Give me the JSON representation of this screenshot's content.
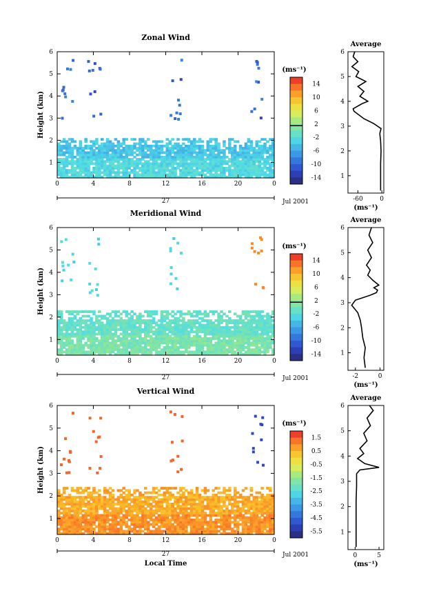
{
  "chart_data": [
    {
      "type": "heatmap",
      "title": "Zonal Wind",
      "xlabel": "",
      "ylabel": "Height (km)",
      "xlim": [
        0,
        24
      ],
      "ylim": [
        0.3,
        6
      ],
      "x_ticks": [
        "0",
        "4",
        "8",
        "12",
        "16",
        "20",
        "0"
      ],
      "y_ticks": [
        "1",
        "2",
        "3",
        "4",
        "5",
        "6"
      ],
      "day_label": "27",
      "date_label": "Jul 2001",
      "colorbar": {
        "unit": "(ms⁻¹)",
        "ticks": [
          "14",
          "10",
          "6",
          "2",
          "-2",
          "-6",
          "-10",
          "-14"
        ],
        "range": [
          -16,
          16
        ],
        "zero_line": 1.5
      },
      "fields": {
        "base": -4,
        "top_cut": 2.15,
        "rand": 1.5
      },
      "average_profile": {
        "title": "Average",
        "xlabel": "(ms⁻¹)",
        "x_ticks": [
          "-60",
          "0"
        ],
        "xlim": [
          -85,
          5
        ],
        "points": [
          [
            -3,
            0.4
          ],
          [
            -3,
            1.0
          ],
          [
            -3,
            1.5
          ],
          [
            -2,
            2.0
          ],
          [
            -3,
            2.4
          ],
          [
            -5,
            2.7
          ],
          [
            -2,
            2.9
          ],
          [
            -20,
            3.1
          ],
          [
            -45,
            3.3
          ],
          [
            -70,
            3.6
          ],
          [
            -72,
            3.7
          ],
          [
            -50,
            3.9
          ],
          [
            -35,
            4.0
          ],
          [
            -55,
            4.2
          ],
          [
            -45,
            4.4
          ],
          [
            -60,
            4.6
          ],
          [
            -40,
            4.8
          ],
          [
            -65,
            5.0
          ],
          [
            -58,
            5.2
          ],
          [
            -75,
            5.4
          ],
          [
            -60,
            5.6
          ],
          [
            -72,
            5.8
          ],
          [
            -68,
            6.0
          ]
        ]
      }
    },
    {
      "type": "heatmap",
      "title": "Meridional Wind",
      "xlabel": "",
      "ylabel": "Height (km)",
      "xlim": [
        0,
        24
      ],
      "ylim": [
        0.3,
        6
      ],
      "x_ticks": [
        "0",
        "4",
        "8",
        "12",
        "16",
        "20",
        "0"
      ],
      "y_ticks": [
        "1",
        "2",
        "3",
        "4",
        "5",
        "6"
      ],
      "day_label": "27",
      "date_label": "Jul 2001",
      "colorbar": {
        "unit": "(ms⁻¹)",
        "ticks": [
          "14",
          "10",
          "6",
          "2",
          "-2",
          "-6",
          "-10",
          "-14"
        ],
        "range": [
          -16,
          16
        ],
        "zero_line": 1.5
      },
      "fields": {
        "base": -1,
        "top_cut": 2.3,
        "rand": 1.5
      },
      "average_profile": {
        "title": "Average",
        "xlabel": "(ms⁻¹)",
        "x_ticks": [
          "-2",
          "0"
        ],
        "xlim": [
          -2.6,
          0.3
        ],
        "points": [
          [
            -1.2,
            0.4
          ],
          [
            -1.3,
            0.8
          ],
          [
            -1.2,
            1.2
          ],
          [
            -1.4,
            1.6
          ],
          [
            -1.5,
            2.0
          ],
          [
            -1.6,
            2.3
          ],
          [
            -1.8,
            2.6
          ],
          [
            -2.3,
            2.9
          ],
          [
            -2.0,
            3.1
          ],
          [
            -0.8,
            3.3
          ],
          [
            -0.3,
            3.4
          ],
          [
            -0.2,
            3.5
          ],
          [
            -0.5,
            3.6
          ],
          [
            -0.1,
            3.7
          ],
          [
            -0.6,
            3.9
          ],
          [
            -1.0,
            4.1
          ],
          [
            -0.8,
            4.3
          ],
          [
            -1.1,
            4.5
          ],
          [
            -0.7,
            4.8
          ],
          [
            -1.0,
            5.1
          ],
          [
            -0.6,
            5.4
          ],
          [
            -0.9,
            5.7
          ],
          [
            -0.7,
            6.0
          ]
        ]
      }
    },
    {
      "type": "heatmap",
      "title": "Vertical Wind",
      "xlabel": "Local Time",
      "ylabel": "Height (km)",
      "xlim": [
        0,
        24
      ],
      "ylim": [
        0.3,
        6
      ],
      "x_ticks": [
        "0",
        "4",
        "8",
        "12",
        "16",
        "20",
        "0"
      ],
      "y_ticks": [
        "1",
        "2",
        "3",
        "4",
        "5",
        "6"
      ],
      "day_label": "27",
      "date_label": "Jul 2001",
      "colorbar": {
        "unit": "(ms⁻¹)",
        "ticks": [
          "1.5",
          "0.5",
          "-0.5",
          "-1.5",
          "-2.5",
          "-3.5",
          "-4.5",
          "-5.5"
        ],
        "range": [
          -6,
          2
        ],
        "zero_line": null
      },
      "fields": {
        "base": 0.6,
        "top_cut": 2.4,
        "rand": 0.35
      },
      "average_profile": {
        "title": "Average",
        "xlabel": "(ms⁻¹)",
        "x_ticks": [
          "0",
          "5"
        ],
        "xlim": [
          -1.5,
          6
        ],
        "points": [
          [
            0.2,
            0.4
          ],
          [
            0.2,
            1.0
          ],
          [
            0.2,
            1.6
          ],
          [
            0.2,
            2.2
          ],
          [
            0.3,
            2.8
          ],
          [
            0.3,
            3.3
          ],
          [
            1.0,
            3.45
          ],
          [
            5.0,
            3.55
          ],
          [
            2.0,
            3.7
          ],
          [
            0.5,
            3.9
          ],
          [
            1.8,
            4.1
          ],
          [
            1.0,
            4.3
          ],
          [
            2.5,
            4.6
          ],
          [
            1.8,
            4.9
          ],
          [
            3.2,
            5.2
          ],
          [
            2.5,
            5.5
          ],
          [
            3.8,
            5.8
          ],
          [
            3.0,
            6.0
          ]
        ]
      }
    }
  ]
}
